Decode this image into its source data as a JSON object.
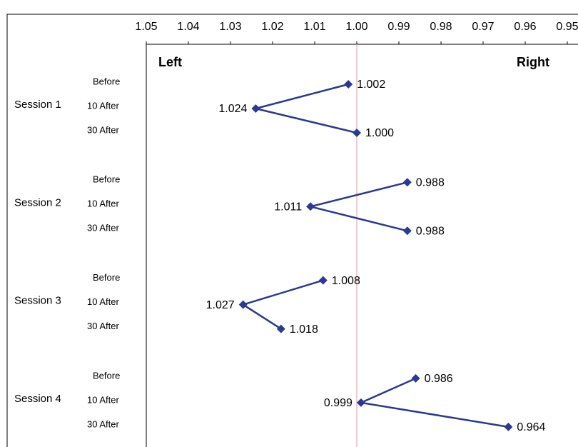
{
  "chart_data": {
    "type": "line",
    "orientation": "horizontal",
    "categories": [
      "Before",
      "10 After",
      "30 After"
    ],
    "series": [
      {
        "name": "Session 1",
        "values": [
          1.002,
          1.024,
          1.0
        ],
        "value_labels": [
          "1.002",
          "1.024",
          "1.000"
        ]
      },
      {
        "name": "Session 2",
        "values": [
          0.988,
          1.011,
          0.988
        ],
        "value_labels": [
          "0.988",
          "1.011",
          "0.988"
        ]
      },
      {
        "name": "Session 3",
        "values": [
          1.008,
          1.027,
          1.018
        ],
        "value_labels": [
          "1.008",
          "1.027",
          "1.018"
        ]
      },
      {
        "name": "Session 4",
        "values": [
          0.986,
          0.999,
          0.964
        ],
        "value_labels": [
          "0.986",
          "0.999",
          "0.964"
        ]
      }
    ],
    "color": "#2b3990",
    "xlim": [
      1.05,
      0.95
    ],
    "xticks": [
      1.05,
      1.04,
      1.03,
      1.02,
      1.01,
      {
        "value": 1,
        "label": "1.00"
      },
      0.99,
      0.98,
      0.97,
      0.96,
      0.95
    ],
    "reference_line": {
      "value": 1,
      "color": "#e8a8a8"
    },
    "annotations": {
      "left": "Left",
      "right": "Right"
    }
  }
}
